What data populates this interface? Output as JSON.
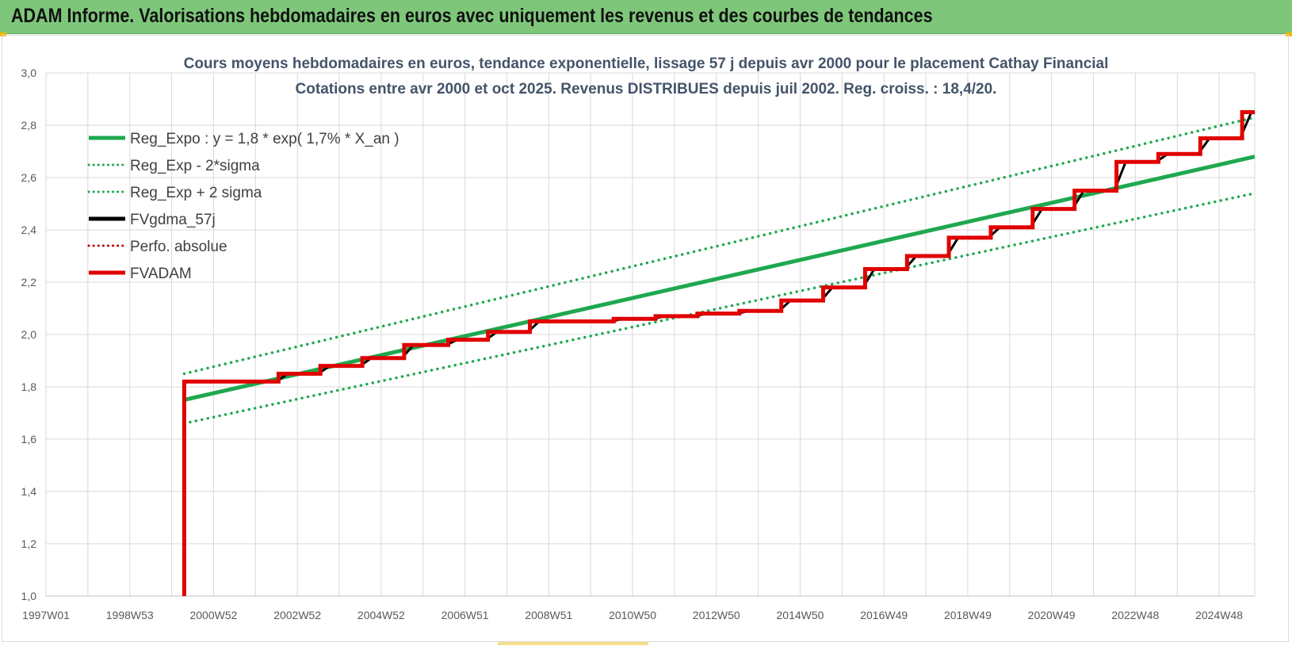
{
  "header": {
    "title": "ADAM Informe. Valorisations hebdomadaires en euros avec uniquement les revenus et des courbes de tendances"
  },
  "chart_data": {
    "type": "line",
    "title": "Cours moyens hebdomadaires en euros, tendance exponentielle, lissage 57 j depuis avr 2000 pour le placement Cathay Financial",
    "subtitle": "Cotations entre avr 2000 et oct 2025. Revenus DISTRIBUES depuis juil 2002. Reg. croiss. : 18,4/20.",
    "xlabel": "",
    "ylabel": "",
    "ylim": [
      1.0,
      3.0
    ],
    "xlim": [
      1997.0,
      2025.85
    ],
    "y_ticks": [
      1.0,
      1.2,
      1.4,
      1.6,
      1.8,
      2.0,
      2.2,
      2.4,
      2.6,
      2.8,
      3.0
    ],
    "y_tick_labels": [
      "1,0",
      "1,2",
      "1,4",
      "1,6",
      "1,8",
      "2,0",
      "2,2",
      "2,4",
      "2,6",
      "2,8",
      "3,0"
    ],
    "x_ticks": [
      1997.0,
      1999.0,
      2001.0,
      2003.0,
      2005.0,
      2007.0,
      2009.0,
      2011.0,
      2013.0,
      2015.0,
      2017.0,
      2019.0,
      2021.0,
      2023.0,
      2025.0
    ],
    "x_tick_labels": [
      "1997W01",
      "1998W53",
      "2000W52",
      "2002W52",
      "2004W52",
      "2006W51",
      "2008W51",
      "2010W50",
      "2012W50",
      "2014W50",
      "2016W49",
      "2018W49",
      "2020W49",
      "2022W48",
      "2024W48"
    ],
    "grid": true,
    "legend_position": "top-left",
    "legend": [
      {
        "label": "Reg_Expo : y = 1,8 * exp( 1,7% *  X_an )",
        "color": "#1fa84f",
        "style": "solid"
      },
      {
        "label": "Reg_Exp - 2*sigma",
        "color": "#1fa84f",
        "style": "dotted"
      },
      {
        "label": "Reg_Exp + 2 sigma",
        "color": "#1fa84f",
        "style": "dotted"
      },
      {
        "label": "FVgdma_57j",
        "color": "#000000",
        "style": "solid"
      },
      {
        "label": "Perfo. absolue",
        "color": "#c00000",
        "style": "dotted"
      },
      {
        "label": "FVADAM",
        "color": "#e00000",
        "style": "solid"
      }
    ],
    "series": [
      {
        "name": "Reg_Expo : y = 1,8 * exp( 1,7% *  X_an )",
        "x": [
          2000.3,
          2025.85
        ],
        "y": [
          1.75,
          2.68
        ]
      },
      {
        "name": "Reg_Exp - 2*sigma",
        "x": [
          2000.3,
          2025.85
        ],
        "y": [
          1.66,
          2.54
        ]
      },
      {
        "name": "Reg_Exp + 2 sigma",
        "x": [
          2000.3,
          2025.85
        ],
        "y": [
          1.85,
          2.83
        ]
      },
      {
        "name": "FVADAM",
        "step_x": [
          2000.3,
          2002.55,
          2003.55,
          2004.55,
          2005.55,
          2006.6,
          2007.55,
          2008.55,
          2009.55,
          2010.55,
          2011.55,
          2012.55,
          2013.55,
          2014.55,
          2015.55,
          2016.55,
          2017.55,
          2018.55,
          2019.55,
          2020.55,
          2021.55,
          2022.55,
          2023.55,
          2024.55,
          2025.55
        ],
        "step_y": [
          1.82,
          1.85,
          1.88,
          1.91,
          1.96,
          1.98,
          2.01,
          2.05,
          2.05,
          2.06,
          2.07,
          2.08,
          2.09,
          2.13,
          2.18,
          2.25,
          2.3,
          2.37,
          2.41,
          2.48,
          2.55,
          2.66,
          2.69,
          2.75,
          2.85
        ],
        "x_end": 2025.85,
        "start_y": 1.0
      }
    ]
  },
  "colors": {
    "banner": "#7ec77a",
    "trend": "#1fa84f",
    "fvadam": "#e00000",
    "fvgdma": "#000000",
    "grid": "#d9d9d9"
  }
}
